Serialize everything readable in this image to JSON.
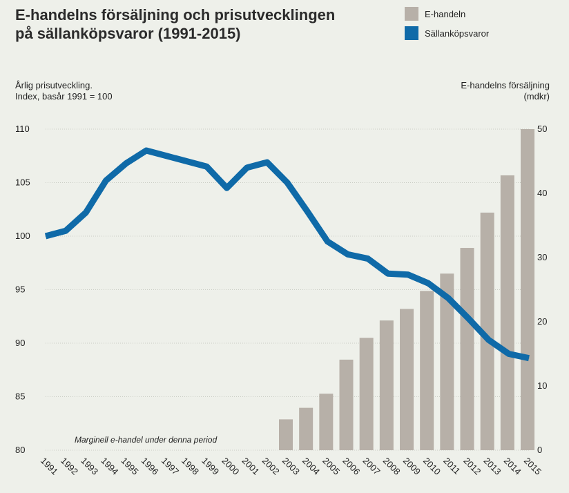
{
  "chart_data": {
    "type": "bar+line",
    "title_line1": "E-handelns försäljning och prisutvecklingen",
    "title_line2": "på sällanköpsvaror (1991-2015)",
    "left_axis_label_line1": "Årlig prisutveckling.",
    "left_axis_label_line2": "Index, basår 1991 = 100",
    "right_axis_label_line1": "E-handelns försäljning",
    "right_axis_label_line2": "(mdkr)",
    "annotation": "Marginell e-handel under denna period",
    "categories": [
      "1991",
      "1992",
      "1993",
      "1994",
      "1995",
      "1996",
      "1997",
      "1998",
      "1999",
      "2000",
      "2001",
      "2002",
      "2003",
      "2004",
      "2005",
      "2006",
      "2007",
      "2008",
      "2009",
      "2010",
      "2011",
      "2012",
      "2013",
      "2014",
      "2015"
    ],
    "left_ylim": [
      80,
      110
    ],
    "left_ticks": [
      "80",
      "85",
      "90",
      "95",
      "100",
      "105",
      "110"
    ],
    "right_ylim": [
      0,
      50
    ],
    "right_ticks": [
      "0",
      "10",
      "20",
      "30",
      "40",
      "50"
    ],
    "legend_position": "top-right",
    "series": [
      {
        "name": "E-handeln",
        "type": "bar",
        "axis": "right",
        "color": "#b7b0a8",
        "values": [
          null,
          null,
          null,
          null,
          null,
          null,
          null,
          null,
          null,
          null,
          null,
          null,
          4.8,
          6.6,
          8.8,
          14.1,
          17.5,
          20.2,
          22.0,
          24.8,
          27.5,
          31.5,
          37.0,
          42.8,
          50.0
        ]
      },
      {
        "name": "Sällanköpsvaror",
        "type": "line",
        "axis": "left",
        "color": "#0f6aa8",
        "values": [
          100.0,
          100.5,
          102.2,
          105.2,
          106.8,
          108.0,
          107.5,
          107.0,
          106.5,
          104.5,
          106.4,
          106.9,
          105.0,
          102.3,
          99.5,
          98.3,
          97.9,
          96.5,
          96.4,
          95.6,
          94.2,
          92.3,
          90.3,
          89.0,
          88.6
        ]
      }
    ]
  }
}
